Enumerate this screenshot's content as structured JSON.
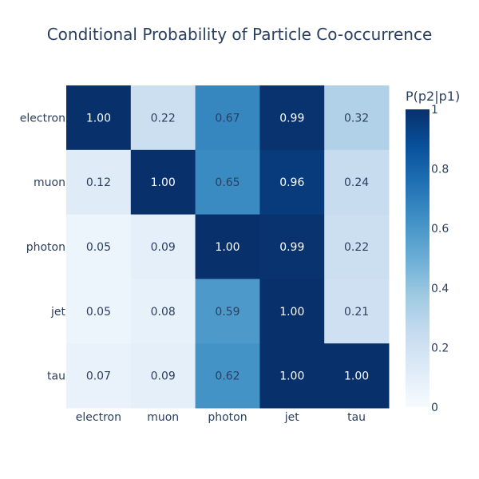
{
  "chart_data": {
    "type": "heatmap",
    "title": "Conditional Probability of Particle Co-occurrence",
    "x_categories": [
      "electron",
      "muon",
      "photon",
      "jet",
      "tau"
    ],
    "y_categories": [
      "electron",
      "muon",
      "photon",
      "jet",
      "tau"
    ],
    "z": [
      [
        1.0,
        0.22,
        0.67,
        0.99,
        0.32
      ],
      [
        0.12,
        1.0,
        0.65,
        0.96,
        0.24
      ],
      [
        0.05,
        0.09,
        1.0,
        0.99,
        0.22
      ],
      [
        0.05,
        0.08,
        0.59,
        1.0,
        0.21
      ],
      [
        0.07,
        0.09,
        0.62,
        1.0,
        1.0
      ]
    ],
    "cell_labels": [
      [
        "1.00",
        "0.22",
        "0.67",
        "0.99",
        "0.32"
      ],
      [
        "0.12",
        "1.00",
        "0.65",
        "0.96",
        "0.24"
      ],
      [
        "0.05",
        "0.09",
        "1.00",
        "0.99",
        "0.22"
      ],
      [
        "0.05",
        "0.08",
        "0.59",
        "1.00",
        "0.21"
      ],
      [
        "0.07",
        "0.09",
        "0.62",
        "1.00",
        "1.00"
      ]
    ],
    "colorbar": {
      "title": "P(p2|p1)",
      "range": [
        0,
        1
      ],
      "ticks": [
        0,
        0.2,
        0.4,
        0.6,
        0.8,
        1
      ],
      "tick_labels": [
        "0",
        "0.2",
        "0.4",
        "0.6",
        "0.8",
        "1"
      ]
    },
    "colorscale": "Blues",
    "colorscale_stops": [
      "#f7fbff",
      "#deebf7",
      "#c6dbef",
      "#9ecae1",
      "#6baed6",
      "#4292c6",
      "#2171b5",
      "#08519c",
      "#08306b"
    ],
    "text_colors": {
      "dark": "#2a3f5f",
      "light": "#ffffff"
    },
    "legend": "colorbar right"
  }
}
